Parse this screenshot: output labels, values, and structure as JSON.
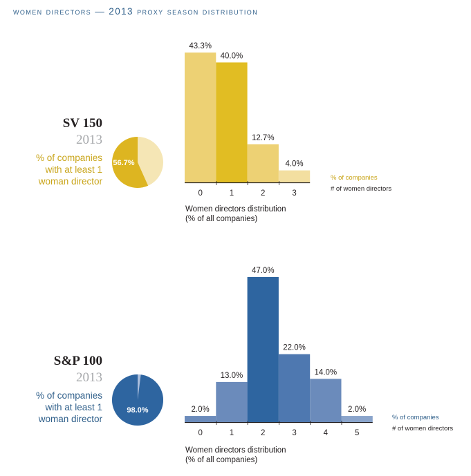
{
  "title": "women directors — 2013 proxy season distribution",
  "chart_data": [
    {
      "type": "bar",
      "company": "SV 150",
      "year": "2013",
      "pie_label": "% of companies with at least 1 woman director",
      "pie_value": 56.7,
      "pie_value_label": "56.7%",
      "categories": [
        "0",
        "1",
        "2",
        "3"
      ],
      "values": [
        43.3,
        40.0,
        12.7,
        4.0
      ],
      "value_labels": [
        "43.3%",
        "40.0%",
        "12.7%",
        "4.0%"
      ],
      "legend_series": "% of companies",
      "legend_axis": "# of women directors",
      "caption_line1": "Women directors distribution",
      "caption_line2": "(% of all companies)",
      "colors": {
        "accent": "#d9b21d",
        "bar": "#edd174",
        "bar_highlight": "#e1bd23",
        "bar_light": "#f3dfa0",
        "pie_main": "#ddb521",
        "pie_rest": "#f5e6b5",
        "text": "#c9a51a"
      }
    },
    {
      "type": "bar",
      "company": "S&P 100",
      "year": "2013",
      "pie_label": "% of companies with at least 1 woman director",
      "pie_value": 98.0,
      "pie_value_label": "98.0%",
      "categories": [
        "0",
        "1",
        "2",
        "3",
        "4",
        "5"
      ],
      "values": [
        2.0,
        13.0,
        47.0,
        22.0,
        14.0,
        2.0
      ],
      "value_labels": [
        "2.0%",
        "13.0%",
        "47.0%",
        "22.0%",
        "14.0%",
        "2.0%"
      ],
      "legend_series": "% of companies",
      "legend_axis": "# of women directors",
      "caption_line1": "Women directors distribution",
      "caption_line2": "(% of all companies)",
      "colors": {
        "accent": "#2f5f8a",
        "bar": "#6b8bbb",
        "bar_highlight": "#2e65a0",
        "bar_mid": "#4e78b0",
        "bar_light": "#8aa4cb",
        "pie_main": "#2e65a0",
        "pie_rest": "#a9bddc",
        "text": "#2f5f8a"
      }
    }
  ]
}
